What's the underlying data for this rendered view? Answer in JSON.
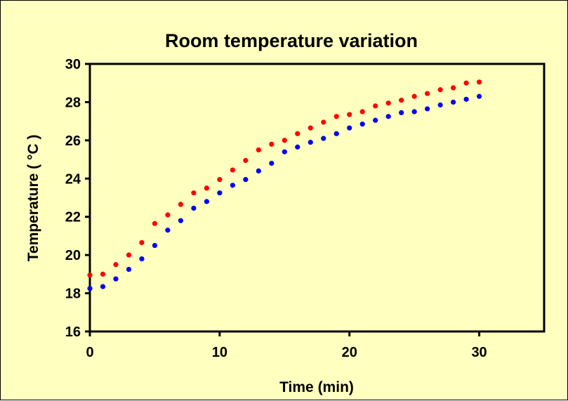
{
  "chart_data": {
    "type": "scatter",
    "title": "Room temperature variation",
    "xlabel": "Time (min)",
    "ylabel": "Temperature  ( °C )",
    "xlim": [
      0,
      35
    ],
    "ylim": [
      16,
      30
    ],
    "xticks": [
      0,
      10,
      20,
      30
    ],
    "yticks": [
      16,
      18,
      20,
      22,
      24,
      26,
      28,
      30
    ],
    "grid": false,
    "legend": "none",
    "plot_background": "#ffffc0",
    "series": [
      {
        "color": "#ff0000",
        "x": [
          0,
          1,
          2,
          3,
          4,
          5,
          6,
          7,
          8,
          9,
          10,
          11,
          12,
          13,
          14,
          15,
          16,
          17,
          18,
          19,
          20,
          21,
          22,
          23,
          24,
          25,
          26,
          27,
          28,
          29,
          30
        ],
        "y": [
          18.95,
          19.0,
          19.5,
          20.0,
          20.65,
          21.65,
          22.1,
          22.65,
          23.25,
          23.5,
          23.95,
          24.45,
          24.95,
          25.5,
          25.8,
          26.0,
          26.35,
          26.65,
          26.95,
          27.25,
          27.35,
          27.5,
          27.8,
          27.95,
          28.1,
          28.3,
          28.45,
          28.65,
          28.75,
          29.0,
          29.05
        ]
      },
      {
        "color": "#0000ff",
        "x": [
          0,
          1,
          2,
          3,
          4,
          5,
          6,
          7,
          8,
          9,
          10,
          11,
          12,
          13,
          14,
          15,
          16,
          17,
          18,
          19,
          20,
          21,
          22,
          23,
          24,
          25,
          26,
          27,
          28,
          29,
          30
        ],
        "y": [
          18.25,
          18.35,
          18.75,
          19.25,
          19.8,
          20.5,
          21.3,
          21.8,
          22.45,
          22.8,
          23.25,
          23.65,
          23.95,
          24.4,
          24.8,
          25.4,
          25.65,
          25.9,
          26.1,
          26.35,
          26.65,
          26.85,
          27.05,
          27.25,
          27.45,
          27.5,
          27.65,
          27.85,
          28.0,
          28.15,
          28.3
        ]
      }
    ]
  }
}
